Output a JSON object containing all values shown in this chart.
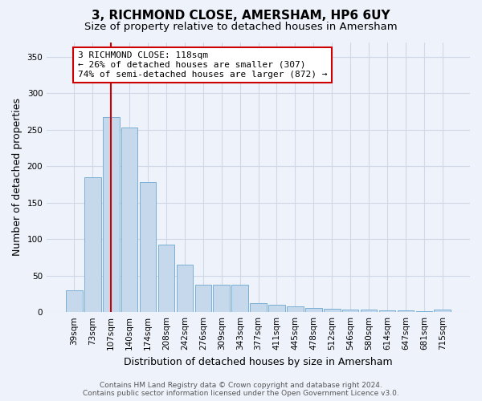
{
  "title": "3, RICHMOND CLOSE, AMERSHAM, HP6 6UY",
  "subtitle": "Size of property relative to detached houses in Amersham",
  "xlabel": "Distribution of detached houses by size in Amersham",
  "ylabel": "Number of detached properties",
  "categories": [
    "39sqm",
    "73sqm",
    "107sqm",
    "140sqm",
    "174sqm",
    "208sqm",
    "242sqm",
    "276sqm",
    "309sqm",
    "343sqm",
    "377sqm",
    "411sqm",
    "445sqm",
    "478sqm",
    "512sqm",
    "546sqm",
    "580sqm",
    "614sqm",
    "647sqm",
    "681sqm",
    "715sqm"
  ],
  "values": [
    30,
    185,
    267,
    253,
    178,
    93,
    65,
    38,
    38,
    38,
    12,
    10,
    8,
    6,
    5,
    3,
    3,
    2,
    2,
    1,
    3
  ],
  "bar_color": "#c5d8ec",
  "bar_edgecolor": "#7aafd4",
  "background_color": "#eef2fa",
  "grid_color": "#d0d8e8",
  "vline_x_index": 2,
  "vline_color": "#cc0000",
  "annotation_text": "3 RICHMOND CLOSE: 118sqm\n← 26% of detached houses are smaller (307)\n74% of semi-detached houses are larger (872) →",
  "annotation_box_facecolor": "#ffffff",
  "annotation_box_edgecolor": "#cc0000",
  "footer_line1": "Contains HM Land Registry data © Crown copyright and database right 2024.",
  "footer_line2": "Contains public sector information licensed under the Open Government Licence v3.0.",
  "ylim": [
    0,
    370
  ],
  "yticks": [
    0,
    50,
    100,
    150,
    200,
    250,
    300,
    350
  ],
  "title_fontsize": 11,
  "subtitle_fontsize": 9.5,
  "tick_fontsize": 7.5,
  "ylabel_fontsize": 9,
  "xlabel_fontsize": 9,
  "footer_fontsize": 6.5,
  "annotation_fontsize": 8
}
